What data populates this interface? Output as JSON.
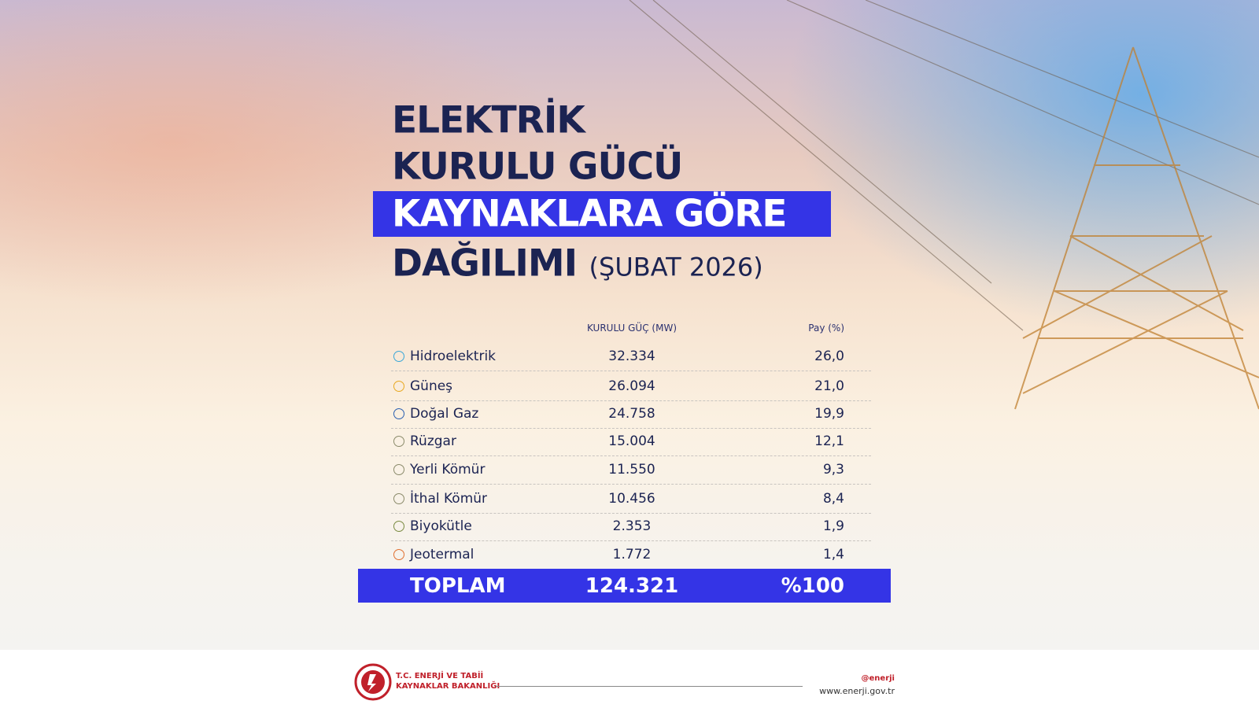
{
  "header": {
    "title_lines": [
      "ELEKTRİK",
      "KURULU GÜCÜ",
      "KAYNAKLARA GÖRE",
      "DAĞILIMI"
    ],
    "subtitle": "(ŞUBAT 2026)"
  },
  "table": {
    "columns": [
      "KURULU GÜÇ (MW)",
      "Pay (%)"
    ],
    "rows": [
      [
        "Hidroelektrik",
        "32.334",
        "26,0"
      ],
      [
        "Güneş",
        "26.094",
        "21,0"
      ],
      [
        "Doğal Gaz",
        "24.758",
        "19,9"
      ],
      [
        "Rüzgar",
        "15.004",
        "12,1"
      ],
      [
        "Yerli Kömür",
        "11.550",
        "9,3"
      ],
      [
        "İthal Kömür",
        "10.456",
        "8,4"
      ],
      [
        "Biyokütle",
        "2.353",
        "1,9"
      ],
      [
        "Jeotermal",
        "1.772",
        "1,4"
      ]
    ],
    "total": [
      "TOPLAM",
      "124.321",
      "%100"
    ]
  },
  "footer": {
    "ministry": [
      "T.C. ENERJİ VE TABİİ",
      "KAYNAKLAR BAKANLIĞI"
    ],
    "social": "@enerji",
    "url": "www.enerji.gov.tr"
  }
}
